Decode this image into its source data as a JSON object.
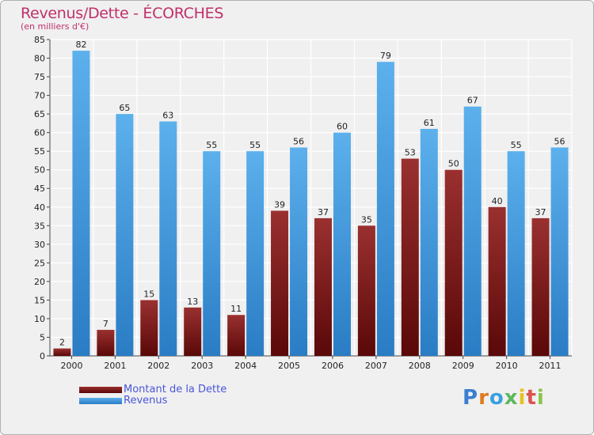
{
  "chart_data": {
    "type": "bar",
    "title": "Revenus/Dette - ÉCORCHES",
    "subtitle": "(en milliers d'€)",
    "categories": [
      "2000",
      "2001",
      "2002",
      "2003",
      "2004",
      "2005",
      "2006",
      "2007",
      "2008",
      "2009",
      "2010",
      "2011"
    ],
    "series": [
      {
        "name": "Montant de la Dette",
        "color": "#7b1c1c",
        "values": [
          2,
          7,
          15,
          13,
          11,
          39,
          37,
          35,
          53,
          50,
          40,
          37
        ]
      },
      {
        "name": "Revenus",
        "color": "#4aa0e0",
        "values": [
          82,
          65,
          63,
          55,
          55,
          56,
          60,
          79,
          61,
          67,
          55,
          56
        ]
      }
    ],
    "ylim": [
      0,
      85
    ],
    "yticks": [
      0,
      5,
      10,
      15,
      20,
      25,
      30,
      35,
      40,
      45,
      50,
      55,
      60,
      65,
      70,
      75,
      80,
      85
    ],
    "grid": true,
    "legend": "bottom-left"
  },
  "brand": {
    "text": "Proxiti"
  }
}
